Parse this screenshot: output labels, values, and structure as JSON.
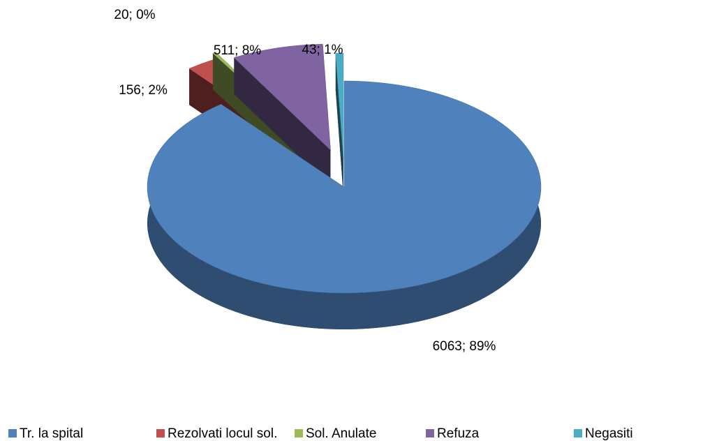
{
  "chart_data": {
    "type": "pie3d",
    "categories": [
      "Tr. la spital",
      "Rezolvati locul sol.",
      "Sol. Anulate",
      "Refuza",
      "Negasiti"
    ],
    "values": [
      6063,
      156,
      20,
      511,
      43
    ],
    "value_labels": [
      "6063; 89%",
      "156; 2%",
      "20; 0%",
      "511; 8%",
      "43; 1%"
    ],
    "colors": [
      "#4f81bd",
      "#c0504d",
      "#9bbb59",
      "#8064a2",
      "#4bacc6"
    ],
    "legend": "bottom"
  }
}
